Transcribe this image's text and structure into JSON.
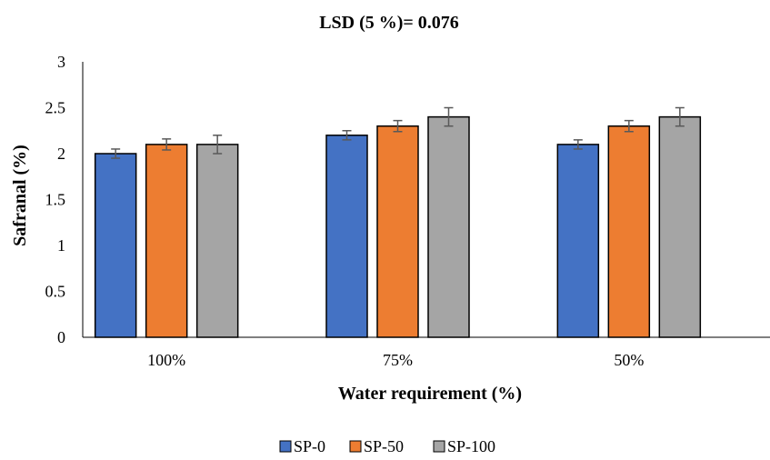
{
  "chart_data": {
    "type": "bar",
    "title": "LSD (5 %)= 0.076",
    "xlabel": "Water requirement (%)",
    "ylabel": "Safranal (%)",
    "ylim": [
      0,
      3
    ],
    "yticks": [
      "0",
      "0.5",
      "1",
      "1.5",
      "2",
      "2.5",
      "3"
    ],
    "categories": [
      "100%",
      "75%",
      "50%"
    ],
    "grid": false,
    "legend_position": "bottom",
    "series": [
      {
        "name": "SP-0",
        "color": "#4472C4",
        "values": [
          2.0,
          2.2,
          2.1
        ],
        "errors": [
          0.05,
          0.05,
          0.05
        ]
      },
      {
        "name": "SP-50",
        "color": "#ED7D31",
        "values": [
          2.1,
          2.3,
          2.3
        ],
        "errors": [
          0.06,
          0.06,
          0.06
        ]
      },
      {
        "name": "SP-100",
        "color": "#A5A5A5",
        "values": [
          2.1,
          2.4,
          2.4
        ],
        "errors": [
          0.1,
          0.1,
          0.1
        ]
      }
    ]
  }
}
